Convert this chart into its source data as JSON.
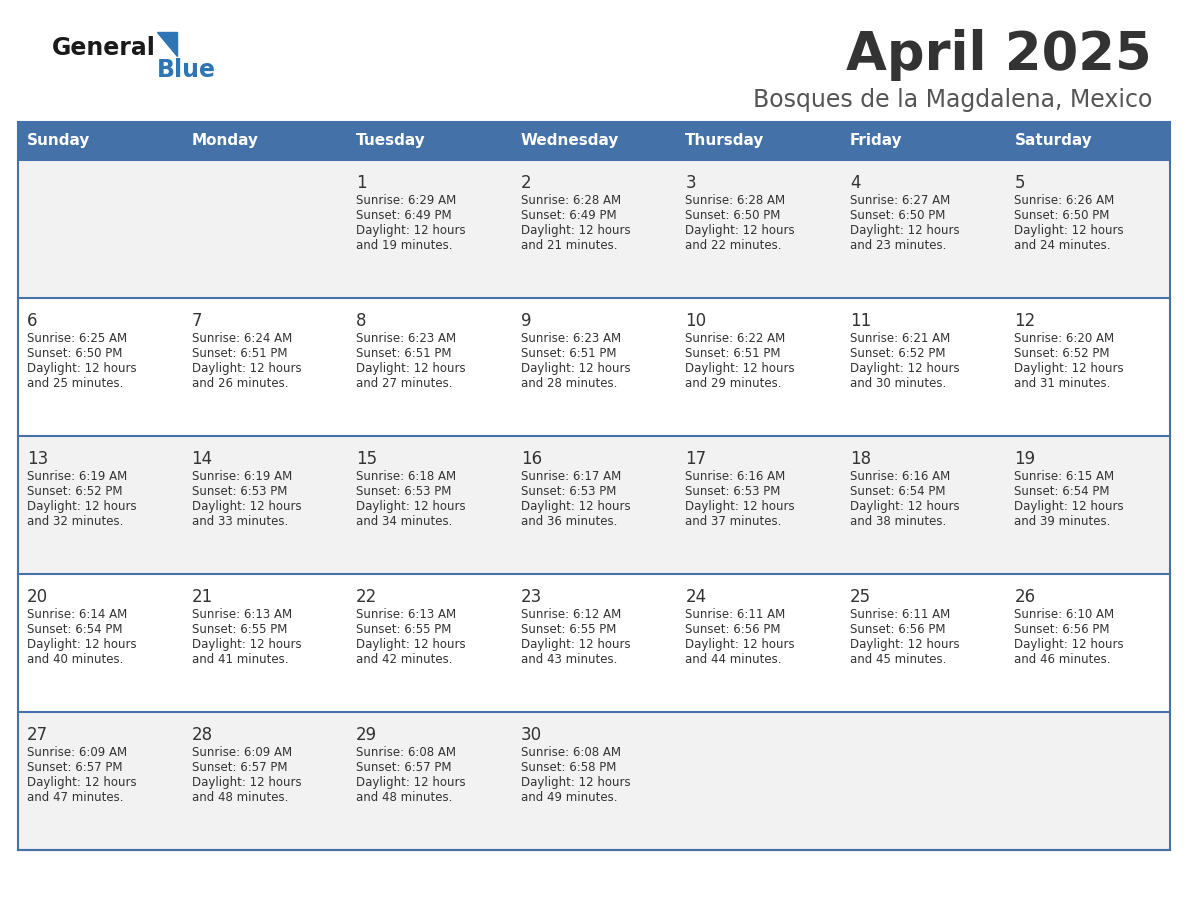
{
  "title": "April 2025",
  "subtitle": "Bosques de la Magdalena, Mexico",
  "days_of_week": [
    "Sunday",
    "Monday",
    "Tuesday",
    "Wednesday",
    "Thursday",
    "Friday",
    "Saturday"
  ],
  "header_bg": "#4472a8",
  "header_text_color": "#ffffff",
  "row_bg_even": "#f2f2f2",
  "row_bg_odd": "#ffffff",
  "divider_color": "#4472a8",
  "cell_text_color": "#333333",
  "title_color": "#333333",
  "subtitle_color": "#555555",
  "logo_general_color": "#1a1a1a",
  "logo_blue_color": "#2e75b6",
  "calendar_data": [
    [
      null,
      null,
      {
        "day": 1,
        "sunrise": "6:29 AM",
        "sunset": "6:49 PM",
        "daylight_hours": 12,
        "daylight_minutes": 19
      },
      {
        "day": 2,
        "sunrise": "6:28 AM",
        "sunset": "6:49 PM",
        "daylight_hours": 12,
        "daylight_minutes": 21
      },
      {
        "day": 3,
        "sunrise": "6:28 AM",
        "sunset": "6:50 PM",
        "daylight_hours": 12,
        "daylight_minutes": 22
      },
      {
        "day": 4,
        "sunrise": "6:27 AM",
        "sunset": "6:50 PM",
        "daylight_hours": 12,
        "daylight_minutes": 23
      },
      {
        "day": 5,
        "sunrise": "6:26 AM",
        "sunset": "6:50 PM",
        "daylight_hours": 12,
        "daylight_minutes": 24
      }
    ],
    [
      {
        "day": 6,
        "sunrise": "6:25 AM",
        "sunset": "6:50 PM",
        "daylight_hours": 12,
        "daylight_minutes": 25
      },
      {
        "day": 7,
        "sunrise": "6:24 AM",
        "sunset": "6:51 PM",
        "daylight_hours": 12,
        "daylight_minutes": 26
      },
      {
        "day": 8,
        "sunrise": "6:23 AM",
        "sunset": "6:51 PM",
        "daylight_hours": 12,
        "daylight_minutes": 27
      },
      {
        "day": 9,
        "sunrise": "6:23 AM",
        "sunset": "6:51 PM",
        "daylight_hours": 12,
        "daylight_minutes": 28
      },
      {
        "day": 10,
        "sunrise": "6:22 AM",
        "sunset": "6:51 PM",
        "daylight_hours": 12,
        "daylight_minutes": 29
      },
      {
        "day": 11,
        "sunrise": "6:21 AM",
        "sunset": "6:52 PM",
        "daylight_hours": 12,
        "daylight_minutes": 30
      },
      {
        "day": 12,
        "sunrise": "6:20 AM",
        "sunset": "6:52 PM",
        "daylight_hours": 12,
        "daylight_minutes": 31
      }
    ],
    [
      {
        "day": 13,
        "sunrise": "6:19 AM",
        "sunset": "6:52 PM",
        "daylight_hours": 12,
        "daylight_minutes": 32
      },
      {
        "day": 14,
        "sunrise": "6:19 AM",
        "sunset": "6:53 PM",
        "daylight_hours": 12,
        "daylight_minutes": 33
      },
      {
        "day": 15,
        "sunrise": "6:18 AM",
        "sunset": "6:53 PM",
        "daylight_hours": 12,
        "daylight_minutes": 34
      },
      {
        "day": 16,
        "sunrise": "6:17 AM",
        "sunset": "6:53 PM",
        "daylight_hours": 12,
        "daylight_minutes": 36
      },
      {
        "day": 17,
        "sunrise": "6:16 AM",
        "sunset": "6:53 PM",
        "daylight_hours": 12,
        "daylight_minutes": 37
      },
      {
        "day": 18,
        "sunrise": "6:16 AM",
        "sunset": "6:54 PM",
        "daylight_hours": 12,
        "daylight_minutes": 38
      },
      {
        "day": 19,
        "sunrise": "6:15 AM",
        "sunset": "6:54 PM",
        "daylight_hours": 12,
        "daylight_minutes": 39
      }
    ],
    [
      {
        "day": 20,
        "sunrise": "6:14 AM",
        "sunset": "6:54 PM",
        "daylight_hours": 12,
        "daylight_minutes": 40
      },
      {
        "day": 21,
        "sunrise": "6:13 AM",
        "sunset": "6:55 PM",
        "daylight_hours": 12,
        "daylight_minutes": 41
      },
      {
        "day": 22,
        "sunrise": "6:13 AM",
        "sunset": "6:55 PM",
        "daylight_hours": 12,
        "daylight_minutes": 42
      },
      {
        "day": 23,
        "sunrise": "6:12 AM",
        "sunset": "6:55 PM",
        "daylight_hours": 12,
        "daylight_minutes": 43
      },
      {
        "day": 24,
        "sunrise": "6:11 AM",
        "sunset": "6:56 PM",
        "daylight_hours": 12,
        "daylight_minutes": 44
      },
      {
        "day": 25,
        "sunrise": "6:11 AM",
        "sunset": "6:56 PM",
        "daylight_hours": 12,
        "daylight_minutes": 45
      },
      {
        "day": 26,
        "sunrise": "6:10 AM",
        "sunset": "6:56 PM",
        "daylight_hours": 12,
        "daylight_minutes": 46
      }
    ],
    [
      {
        "day": 27,
        "sunrise": "6:09 AM",
        "sunset": "6:57 PM",
        "daylight_hours": 12,
        "daylight_minutes": 47
      },
      {
        "day": 28,
        "sunrise": "6:09 AM",
        "sunset": "6:57 PM",
        "daylight_hours": 12,
        "daylight_minutes": 48
      },
      {
        "day": 29,
        "sunrise": "6:08 AM",
        "sunset": "6:57 PM",
        "daylight_hours": 12,
        "daylight_minutes": 48
      },
      {
        "day": 30,
        "sunrise": "6:08 AM",
        "sunset": "6:58 PM",
        "daylight_hours": 12,
        "daylight_minutes": 49
      },
      null,
      null,
      null
    ]
  ]
}
